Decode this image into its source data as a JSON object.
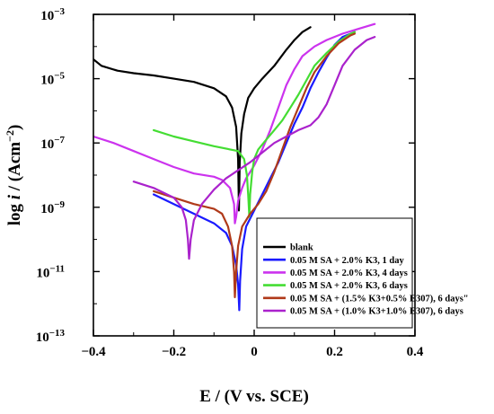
{
  "chart_data": {
    "type": "line",
    "title": "",
    "xlabel": "E / (V vs. SCE)",
    "ylabel_parts": [
      "log ",
      "i",
      " / (Acm",
      "−2",
      ")"
    ],
    "xlim": [
      -0.4,
      0.4
    ],
    "ylim_log10": [
      -13,
      -3
    ],
    "x_ticks": [
      {
        "value": -0.4,
        "label": "−0.4"
      },
      {
        "value": -0.2,
        "label": "−0.2"
      },
      {
        "value": 0,
        "label": "0"
      },
      {
        "value": 0.2,
        "label": "0.2"
      },
      {
        "value": 0.4,
        "label": "0.4"
      }
    ],
    "y_ticks": [
      {
        "value": -3,
        "base": "10",
        "exp": "−3"
      },
      {
        "value": -5,
        "base": "10",
        "exp": "−5"
      },
      {
        "value": -7,
        "base": "10",
        "exp": "−7"
      },
      {
        "value": -9,
        "base": "10",
        "exp": "−9"
      },
      {
        "value": -11,
        "base": "10",
        "exp": "−11"
      },
      {
        "value": -13,
        "base": "10",
        "exp": "−13"
      }
    ],
    "legend_position": "bottom-right",
    "series": [
      {
        "name": "blank",
        "color": "#000000",
        "points": [
          [
            -0.4,
            -4.4
          ],
          [
            -0.38,
            -4.6
          ],
          [
            -0.34,
            -4.75
          ],
          [
            -0.3,
            -4.83
          ],
          [
            -0.25,
            -4.9
          ],
          [
            -0.2,
            -5.0
          ],
          [
            -0.15,
            -5.1
          ],
          [
            -0.1,
            -5.3
          ],
          [
            -0.07,
            -5.55
          ],
          [
            -0.055,
            -5.9
          ],
          [
            -0.045,
            -6.5
          ],
          [
            -0.04,
            -7.5
          ],
          [
            -0.038,
            -9.1
          ],
          [
            -0.036,
            -7.6
          ],
          [
            -0.032,
            -6.7
          ],
          [
            -0.025,
            -6.1
          ],
          [
            -0.015,
            -5.6
          ],
          [
            0.0,
            -5.3
          ],
          [
            0.02,
            -5.0
          ],
          [
            0.05,
            -4.6
          ],
          [
            0.08,
            -4.1
          ],
          [
            0.1,
            -3.8
          ],
          [
            0.12,
            -3.55
          ],
          [
            0.14,
            -3.4
          ]
        ]
      },
      {
        "name": "0.05 M SA + 2.0% K3, 1 day",
        "color": "#1a1aff",
        "points": [
          [
            -0.25,
            -8.6
          ],
          [
            -0.2,
            -8.9
          ],
          [
            -0.15,
            -9.2
          ],
          [
            -0.1,
            -9.5
          ],
          [
            -0.07,
            -9.8
          ],
          [
            -0.055,
            -10.2
          ],
          [
            -0.045,
            -10.8
          ],
          [
            -0.04,
            -11.4
          ],
          [
            -0.037,
            -12.2
          ],
          [
            -0.035,
            -11.3
          ],
          [
            -0.03,
            -10.3
          ],
          [
            -0.02,
            -9.6
          ],
          [
            0.0,
            -9.1
          ],
          [
            0.02,
            -8.6
          ],
          [
            0.04,
            -8.1
          ],
          [
            0.06,
            -7.6
          ],
          [
            0.08,
            -7.0
          ],
          [
            0.1,
            -6.4
          ],
          [
            0.12,
            -5.9
          ],
          [
            0.14,
            -5.3
          ],
          [
            0.16,
            -4.8
          ],
          [
            0.18,
            -4.35
          ],
          [
            0.2,
            -3.95
          ],
          [
            0.22,
            -3.7
          ],
          [
            0.24,
            -3.6
          ],
          [
            0.25,
            -3.55
          ]
        ]
      },
      {
        "name": "0.05 M SA + 2.0% K3, 4 days",
        "color": "#cc33ee",
        "points": [
          [
            -0.4,
            -6.8
          ],
          [
            -0.35,
            -7.0
          ],
          [
            -0.3,
            -7.25
          ],
          [
            -0.25,
            -7.5
          ],
          [
            -0.2,
            -7.75
          ],
          [
            -0.15,
            -7.95
          ],
          [
            -0.1,
            -8.05
          ],
          [
            -0.08,
            -8.15
          ],
          [
            -0.06,
            -8.4
          ],
          [
            -0.05,
            -8.9
          ],
          [
            -0.048,
            -9.5
          ],
          [
            -0.045,
            -9.3
          ],
          [
            -0.04,
            -8.8
          ],
          [
            -0.03,
            -8.4
          ],
          [
            -0.02,
            -8.1
          ],
          [
            0.0,
            -7.7
          ],
          [
            0.02,
            -7.2
          ],
          [
            0.04,
            -6.6
          ],
          [
            0.06,
            -5.9
          ],
          [
            0.08,
            -5.2
          ],
          [
            0.1,
            -4.7
          ],
          [
            0.12,
            -4.3
          ],
          [
            0.15,
            -4.0
          ],
          [
            0.18,
            -3.8
          ],
          [
            0.22,
            -3.6
          ],
          [
            0.26,
            -3.45
          ],
          [
            0.3,
            -3.3
          ]
        ]
      },
      {
        "name": "0.05 M SA + 2.0% K3, 6 days",
        "color": "#44dd33",
        "points": [
          [
            -0.25,
            -6.6
          ],
          [
            -0.2,
            -6.8
          ],
          [
            -0.15,
            -6.95
          ],
          [
            -0.1,
            -7.1
          ],
          [
            -0.06,
            -7.2
          ],
          [
            -0.04,
            -7.25
          ],
          [
            -0.025,
            -7.5
          ],
          [
            -0.018,
            -8.0
          ],
          [
            -0.015,
            -8.6
          ],
          [
            -0.012,
            -9.3
          ],
          [
            -0.01,
            -8.6
          ],
          [
            -0.005,
            -7.9
          ],
          [
            0.0,
            -7.5
          ],
          [
            0.01,
            -7.2
          ],
          [
            0.03,
            -6.9
          ],
          [
            0.05,
            -6.6
          ],
          [
            0.07,
            -6.3
          ],
          [
            0.09,
            -5.9
          ],
          [
            0.11,
            -5.5
          ],
          [
            0.13,
            -5.05
          ],
          [
            0.15,
            -4.6
          ],
          [
            0.18,
            -4.2
          ],
          [
            0.21,
            -3.85
          ],
          [
            0.24,
            -3.6
          ],
          [
            0.25,
            -3.55
          ]
        ]
      },
      {
        "name": "0.05 M SA + (1.5% K3+0.5% E307), 6 days\"",
        "color": "#b03a1a",
        "points": [
          [
            -0.25,
            -8.5
          ],
          [
            -0.2,
            -8.7
          ],
          [
            -0.15,
            -8.9
          ],
          [
            -0.1,
            -9.05
          ],
          [
            -0.08,
            -9.2
          ],
          [
            -0.065,
            -9.6
          ],
          [
            -0.055,
            -10.2
          ],
          [
            -0.05,
            -11.0
          ],
          [
            -0.048,
            -11.8
          ],
          [
            -0.045,
            -11.0
          ],
          [
            -0.04,
            -10.2
          ],
          [
            -0.03,
            -9.6
          ],
          [
            -0.01,
            -9.2
          ],
          [
            0.01,
            -8.9
          ],
          [
            0.03,
            -8.5
          ],
          [
            0.05,
            -7.9
          ],
          [
            0.07,
            -7.2
          ],
          [
            0.09,
            -6.5
          ],
          [
            0.11,
            -5.9
          ],
          [
            0.13,
            -5.3
          ],
          [
            0.15,
            -4.8
          ],
          [
            0.18,
            -4.3
          ],
          [
            0.21,
            -3.9
          ],
          [
            0.24,
            -3.65
          ],
          [
            0.25,
            -3.6
          ]
        ]
      },
      {
        "name": "0.05 M SA + (1.0% K3+1.0% E307), 6 days",
        "color": "#aa22cc",
        "points": [
          [
            -0.3,
            -8.2
          ],
          [
            -0.25,
            -8.4
          ],
          [
            -0.2,
            -8.7
          ],
          [
            -0.18,
            -9.0
          ],
          [
            -0.17,
            -9.4
          ],
          [
            -0.165,
            -10.0
          ],
          [
            -0.162,
            -10.6
          ],
          [
            -0.158,
            -10.0
          ],
          [
            -0.15,
            -9.4
          ],
          [
            -0.13,
            -8.9
          ],
          [
            -0.1,
            -8.45
          ],
          [
            -0.07,
            -8.1
          ],
          [
            -0.04,
            -7.85
          ],
          [
            -0.01,
            -7.6
          ],
          [
            0.02,
            -7.3
          ],
          [
            0.05,
            -7.0
          ],
          [
            0.08,
            -6.8
          ],
          [
            0.11,
            -6.6
          ],
          [
            0.14,
            -6.45
          ],
          [
            0.16,
            -6.2
          ],
          [
            0.18,
            -5.8
          ],
          [
            0.2,
            -5.2
          ],
          [
            0.22,
            -4.6
          ],
          [
            0.25,
            -4.1
          ],
          [
            0.28,
            -3.8
          ],
          [
            0.3,
            -3.7
          ]
        ]
      }
    ]
  }
}
